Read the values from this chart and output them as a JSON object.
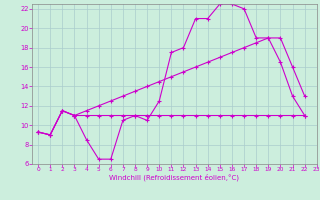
{
  "bg_color": "#cceedd",
  "grid_color": "#aacccc",
  "line_color": "#cc00cc",
  "xlim": [
    -0.5,
    23
  ],
  "ylim": [
    6,
    22.5
  ],
  "xticks": [
    0,
    1,
    2,
    3,
    4,
    5,
    6,
    7,
    8,
    9,
    10,
    11,
    12,
    13,
    14,
    15,
    16,
    17,
    18,
    19,
    20,
    21,
    22,
    23
  ],
  "yticks": [
    6,
    8,
    10,
    12,
    14,
    16,
    18,
    20,
    22
  ],
  "xlabel": "Windchill (Refroidissement éolien,°C)",
  "line1_x": [
    0,
    1,
    2,
    3,
    4,
    5,
    6,
    7,
    8,
    9,
    10,
    11,
    12,
    13,
    14,
    15,
    16,
    17,
    18,
    19,
    20,
    21,
    22
  ],
  "line1_y": [
    9.3,
    9.0,
    11.5,
    11.0,
    8.5,
    6.5,
    6.5,
    10.5,
    11.0,
    10.5,
    12.5,
    17.5,
    18.0,
    21.0,
    21.0,
    22.5,
    22.5,
    22.0,
    19.0,
    19.0,
    16.5,
    13.0,
    11.0
  ],
  "line2_x": [
    0,
    1,
    2,
    3,
    4,
    5,
    6,
    7,
    8,
    9,
    10,
    11,
    12,
    13,
    14,
    15,
    16,
    17,
    18,
    19,
    20,
    21,
    22
  ],
  "line2_y": [
    9.3,
    9.0,
    11.5,
    11.0,
    11.0,
    11.0,
    11.0,
    11.0,
    11.0,
    11.0,
    11.0,
    11.0,
    11.0,
    11.0,
    11.0,
    11.0,
    11.0,
    11.0,
    11.0,
    11.0,
    11.0,
    11.0,
    11.0
  ],
  "line3_x": [
    0,
    1,
    2,
    3,
    4,
    5,
    6,
    7,
    8,
    9,
    10,
    11,
    12,
    13,
    14,
    15,
    16,
    17,
    18,
    19,
    20,
    21,
    22
  ],
  "line3_y": [
    9.3,
    9.0,
    11.5,
    11.0,
    11.5,
    12.0,
    12.5,
    13.0,
    13.5,
    14.0,
    14.5,
    15.0,
    15.5,
    16.0,
    16.5,
    17.0,
    17.5,
    18.0,
    18.5,
    19.0,
    19.0,
    16.0,
    13.0
  ]
}
